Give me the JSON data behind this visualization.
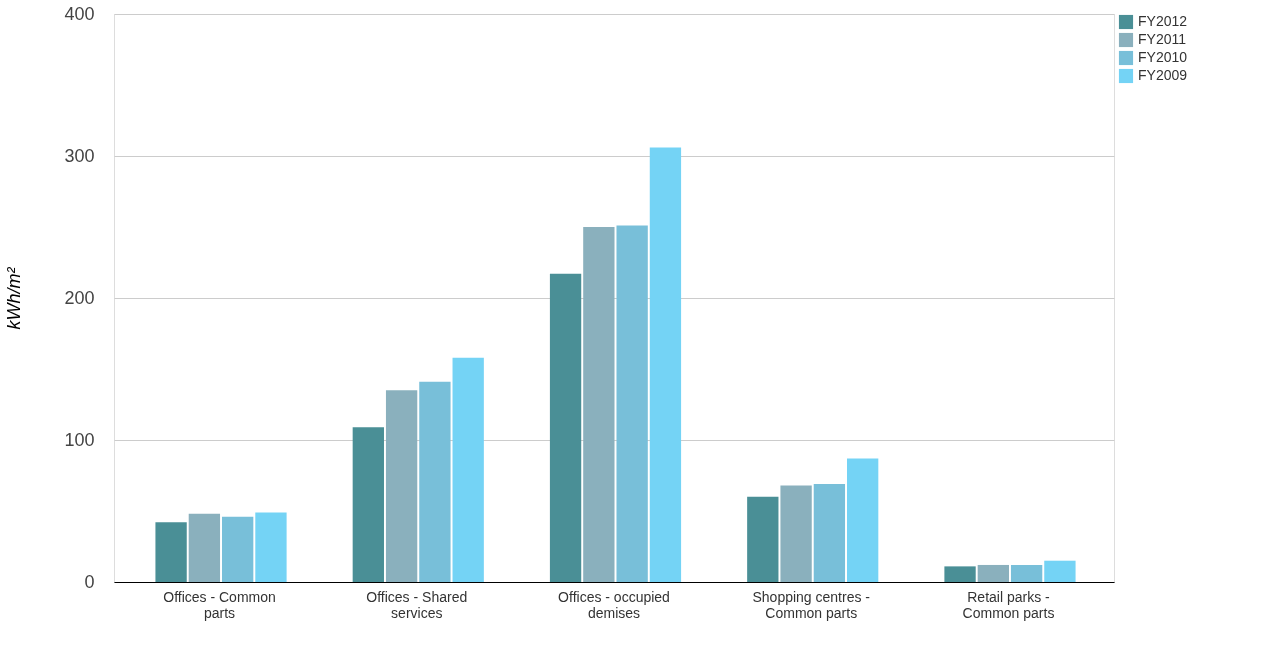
{
  "chart_data": {
    "type": "bar",
    "ylabel": "kWh/m²",
    "categories": [
      "Offices - Common parts",
      "Offices - Shared services",
      "Offices - occupied demises",
      "Shopping centres - Common parts",
      "Retail parks - Common parts"
    ],
    "series": [
      {
        "name": "FY2012",
        "color": "#4a8f96",
        "values": [
          42,
          109,
          217,
          60,
          11
        ]
      },
      {
        "name": "FY2011",
        "color": "#8ab0bd",
        "values": [
          48,
          135,
          250,
          68,
          12
        ]
      },
      {
        "name": "FY2010",
        "color": "#78bfd9",
        "values": [
          46,
          141,
          251,
          69,
          12
        ]
      },
      {
        "name": "FY2009",
        "color": "#74d3f5",
        "values": [
          49,
          158,
          306,
          87,
          15
        ]
      }
    ],
    "ylim": [
      0,
      400
    ],
    "yticks": [
      0,
      100,
      200,
      300,
      400
    ],
    "grid": "y",
    "legend": "top right"
  }
}
